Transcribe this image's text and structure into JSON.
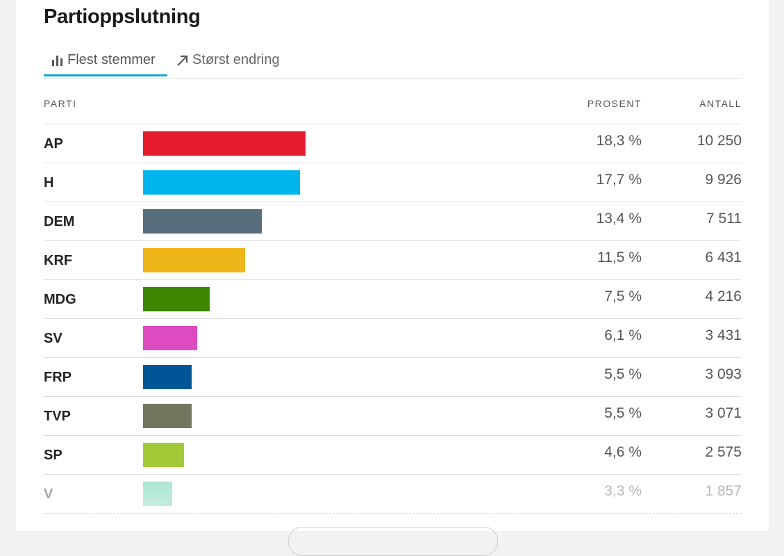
{
  "header": {
    "title": "Partioppslutning",
    "tabs": [
      "Flest stemmer",
      "Størst endring"
    ]
  },
  "table": {
    "columns": [
      "PARTI",
      "PROSENT",
      "ANTALL"
    ],
    "rows": [
      {
        "party": "AP",
        "percent": 18.3,
        "percent_label": "18,3 %",
        "count": "10 250",
        "color": "#e51c30"
      },
      {
        "party": "H",
        "percent": 17.7,
        "percent_label": "17,7 %",
        "count": "9 926",
        "color": "#00b5ec"
      },
      {
        "party": "DEM",
        "percent": 13.4,
        "percent_label": "13,4 %",
        "count": "7 511",
        "color": "#576d7b"
      },
      {
        "party": "KRF",
        "percent": 11.5,
        "percent_label": "11,5 %",
        "count": "6 431",
        "color": "#efb619"
      },
      {
        "party": "MDG",
        "percent": 7.5,
        "percent_label": "7,5 %",
        "count": "4 216",
        "color": "#3e8703"
      },
      {
        "party": "SV",
        "percent": 6.1,
        "percent_label": "6,1 %",
        "count": "3 431",
        "color": "#de4bc1"
      },
      {
        "party": "FRP",
        "percent": 5.5,
        "percent_label": "5,5 %",
        "count": "3 093",
        "color": "#005596"
      },
      {
        "party": "TVP",
        "percent": 5.5,
        "percent_label": "5,5 %",
        "count": "3 071",
        "color": "#73765c"
      },
      {
        "party": "SP",
        "percent": 4.6,
        "percent_label": "4,6 %",
        "count": "2 575",
        "color": "#a3cb38"
      },
      {
        "party": "V",
        "percent": 3.3,
        "percent_label": "3,3 %",
        "count": "1 857",
        "color": "#4ec9a2"
      }
    ]
  }
}
